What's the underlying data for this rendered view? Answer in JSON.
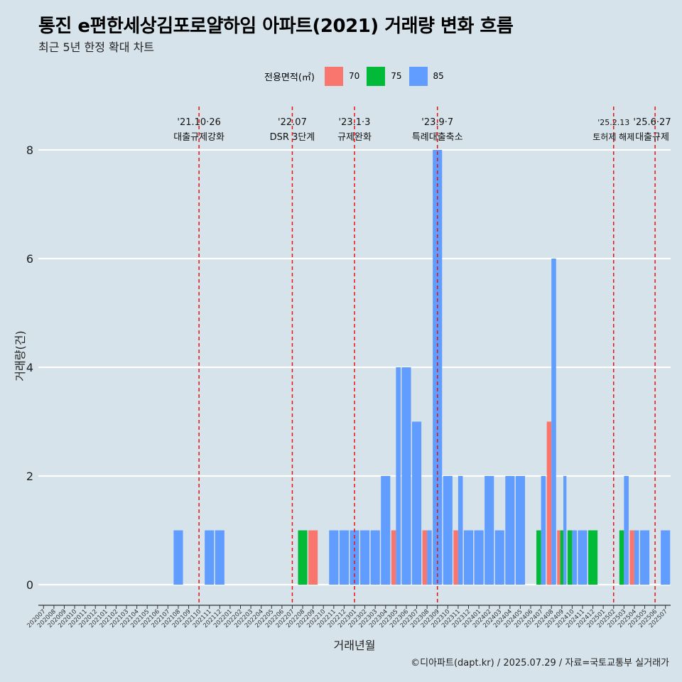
{
  "title": "통진 e편한세상김포로얄하임 아파트(2021) 거래량 변화 흐름",
  "subtitle": "최근 5년 한정 확대 차트",
  "caption": "©디아파트(dapt.kr) / 2025.07.29 / 자료=국토교통부 실거래가",
  "legend": {
    "title": "전용면적(㎡)",
    "items": [
      {
        "label": "70",
        "color": "#f8766d"
      },
      {
        "label": "75",
        "color": "#00ba38"
      },
      {
        "label": "85",
        "color": "#619cff"
      }
    ]
  },
  "chart_data": {
    "type": "bar",
    "xlabel": "거래년월",
    "ylabel": "거래량(건)",
    "ylim": [
      0,
      8
    ],
    "yticks": [
      0,
      2,
      4,
      6,
      8
    ],
    "grid": true,
    "legend_position": "top",
    "categories": [
      "202007",
      "202008",
      "202009",
      "202010",
      "202011",
      "202012",
      "202101",
      "202102",
      "202103",
      "202104",
      "202105",
      "202106",
      "202107",
      "202108",
      "202109",
      "202110",
      "202111",
      "202112",
      "202201",
      "202202",
      "202203",
      "202204",
      "202205",
      "202206",
      "202207",
      "202208",
      "202209",
      "202210",
      "202211",
      "202212",
      "202301",
      "202302",
      "202303",
      "202304",
      "202305",
      "202306",
      "202307",
      "202308",
      "202309",
      "202310",
      "202311",
      "202312",
      "202401",
      "202402",
      "202403",
      "202404",
      "202405",
      "202406",
      "202407",
      "202408",
      "202409",
      "202410",
      "202411",
      "202412",
      "202501",
      "202502",
      "202503",
      "202504",
      "202505",
      "202506",
      "202507"
    ],
    "series": [
      {
        "name": "70",
        "color": "#f8766d",
        "points": [
          {
            "x": "202209",
            "y": 1
          },
          {
            "x": "202305",
            "y": 1
          },
          {
            "x": "202308",
            "y": 1
          },
          {
            "x": "202311",
            "y": 1
          },
          {
            "x": "202408",
            "y": 3
          },
          {
            "x": "202409",
            "y": 1
          },
          {
            "x": "202504",
            "y": 1
          }
        ]
      },
      {
        "name": "75",
        "color": "#00ba38",
        "points": [
          {
            "x": "202208",
            "y": 1
          },
          {
            "x": "202407",
            "y": 1
          },
          {
            "x": "202409",
            "y": 1
          },
          {
            "x": "202410",
            "y": 1
          },
          {
            "x": "202412",
            "y": 1
          },
          {
            "x": "202503",
            "y": 1
          }
        ]
      },
      {
        "name": "85",
        "color": "#619cff",
        "points": [
          {
            "x": "202108",
            "y": 1
          },
          {
            "x": "202111",
            "y": 1
          },
          {
            "x": "202112",
            "y": 1
          },
          {
            "x": "202211",
            "y": 1
          },
          {
            "x": "202212",
            "y": 1
          },
          {
            "x": "202301",
            "y": 1
          },
          {
            "x": "202302",
            "y": 1
          },
          {
            "x": "202303",
            "y": 1
          },
          {
            "x": "202304",
            "y": 2
          },
          {
            "x": "202305",
            "y": 4
          },
          {
            "x": "202306",
            "y": 4
          },
          {
            "x": "202307",
            "y": 3
          },
          {
            "x": "202308",
            "y": 1
          },
          {
            "x": "202309",
            "y": 8
          },
          {
            "x": "202310",
            "y": 2
          },
          {
            "x": "202311",
            "y": 2
          },
          {
            "x": "202312",
            "y": 1
          },
          {
            "x": "202401",
            "y": 1
          },
          {
            "x": "202402",
            "y": 2
          },
          {
            "x": "202403",
            "y": 1
          },
          {
            "x": "202404",
            "y": 2
          },
          {
            "x": "202405",
            "y": 2
          },
          {
            "x": "202407",
            "y": 2
          },
          {
            "x": "202408",
            "y": 6
          },
          {
            "x": "202409",
            "y": 2
          },
          {
            "x": "202410",
            "y": 1
          },
          {
            "x": "202411",
            "y": 1
          },
          {
            "x": "202503",
            "y": 2
          },
          {
            "x": "202504",
            "y": 1
          },
          {
            "x": "202505",
            "y": 1
          },
          {
            "x": "202507",
            "y": 1
          }
        ]
      }
    ],
    "annotations": [
      {
        "x": "202110",
        "date": "'21.10·26",
        "label": "대출규제강화"
      },
      {
        "x": "202207",
        "date": "'22.07",
        "label": "DSR 3단계"
      },
      {
        "x": "202301",
        "date": "'23.1·3",
        "label": "규제완화"
      },
      {
        "x": "202309",
        "date": "'23.9·7",
        "label": "특례대출축소"
      },
      {
        "x": "202502",
        "date": "'25.2.13",
        "label": "토허제 해제"
      },
      {
        "x": "202506",
        "date": "'25.6·27",
        "label": "대출규제"
      }
    ]
  }
}
